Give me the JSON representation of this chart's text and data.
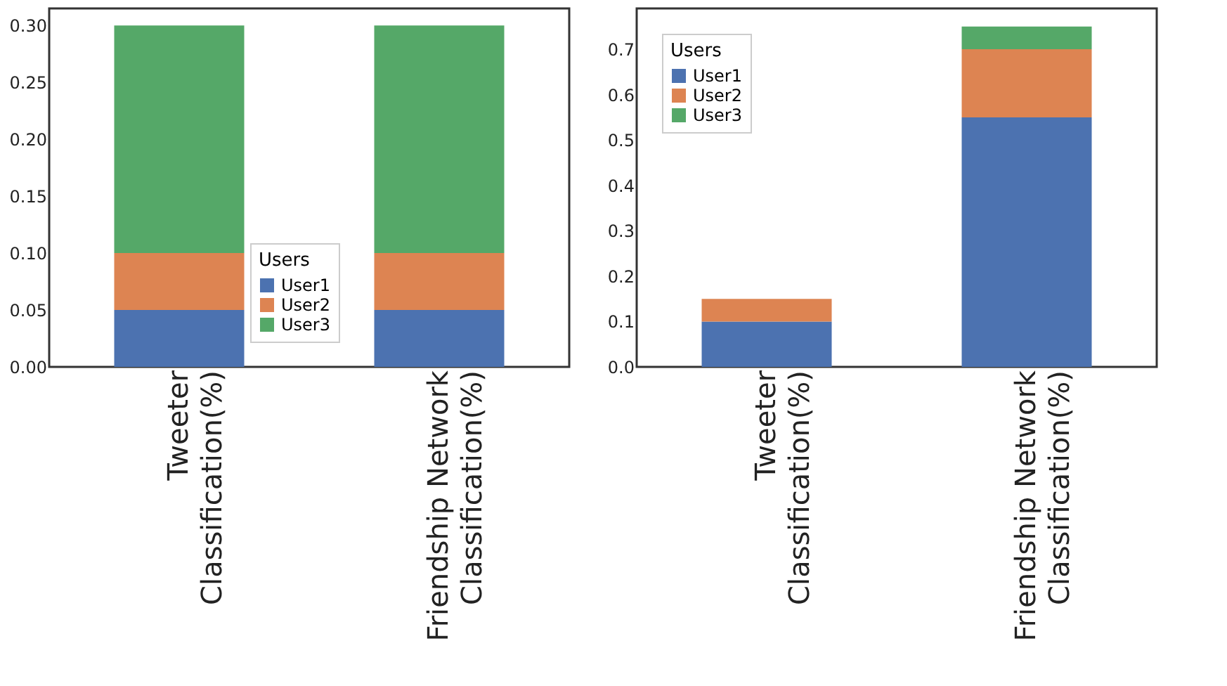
{
  "chart_data": [
    {
      "type": "bar",
      "stacked": true,
      "categories": [
        "Tweeter\nClassification(%)",
        "Friendship Network\nClassification(%)"
      ],
      "legend_title": "Users",
      "legend": "bottom",
      "series": [
        {
          "name": "User1",
          "color": "#4c72b0",
          "values": [
            0.05,
            0.05
          ]
        },
        {
          "name": "User2",
          "color": "#dd8452",
          "values": [
            0.05,
            0.05
          ]
        },
        {
          "name": "User3",
          "color": "#55a868",
          "values": [
            0.2,
            0.2
          ]
        }
      ],
      "ylim": [
        0,
        0.315
      ],
      "yticks": [
        {
          "value": 0,
          "label": "0.00"
        },
        {
          "value": 0.05,
          "label": "0.05"
        },
        {
          "value": 0.1,
          "label": "0.10"
        },
        {
          "value": 0.15,
          "label": "0.15"
        },
        {
          "value": 0.2,
          "label": "0.20"
        },
        {
          "value": 0.25,
          "label": "0.25"
        },
        {
          "value": 0.3,
          "label": "0.30"
        }
      ]
    },
    {
      "type": "bar",
      "stacked": true,
      "categories": [
        "Tweeter\nClassification(%)",
        "Friendship Network\nClassification(%)"
      ],
      "legend_title": "Users",
      "legend": "top left",
      "series": [
        {
          "name": "User1",
          "color": "#4c72b0",
          "values": [
            0.1,
            0.55
          ]
        },
        {
          "name": "User2",
          "color": "#dd8452",
          "values": [
            0.05,
            0.15
          ]
        },
        {
          "name": "User3",
          "color": "#55a868",
          "values": [
            0,
            0.05
          ]
        }
      ],
      "ylim": [
        0,
        0.79
      ],
      "yticks": [
        {
          "value": 0,
          "label": "0.0"
        },
        {
          "value": 0.1,
          "label": "0.1"
        },
        {
          "value": 0.2,
          "label": "0.2"
        },
        {
          "value": 0.3,
          "label": "0.3"
        },
        {
          "value": 0.4,
          "label": "0.4"
        },
        {
          "value": 0.5,
          "label": "0.5"
        },
        {
          "value": 0.6,
          "label": "0.6"
        },
        {
          "value": 0.7,
          "label": "0.7"
        }
      ]
    }
  ]
}
